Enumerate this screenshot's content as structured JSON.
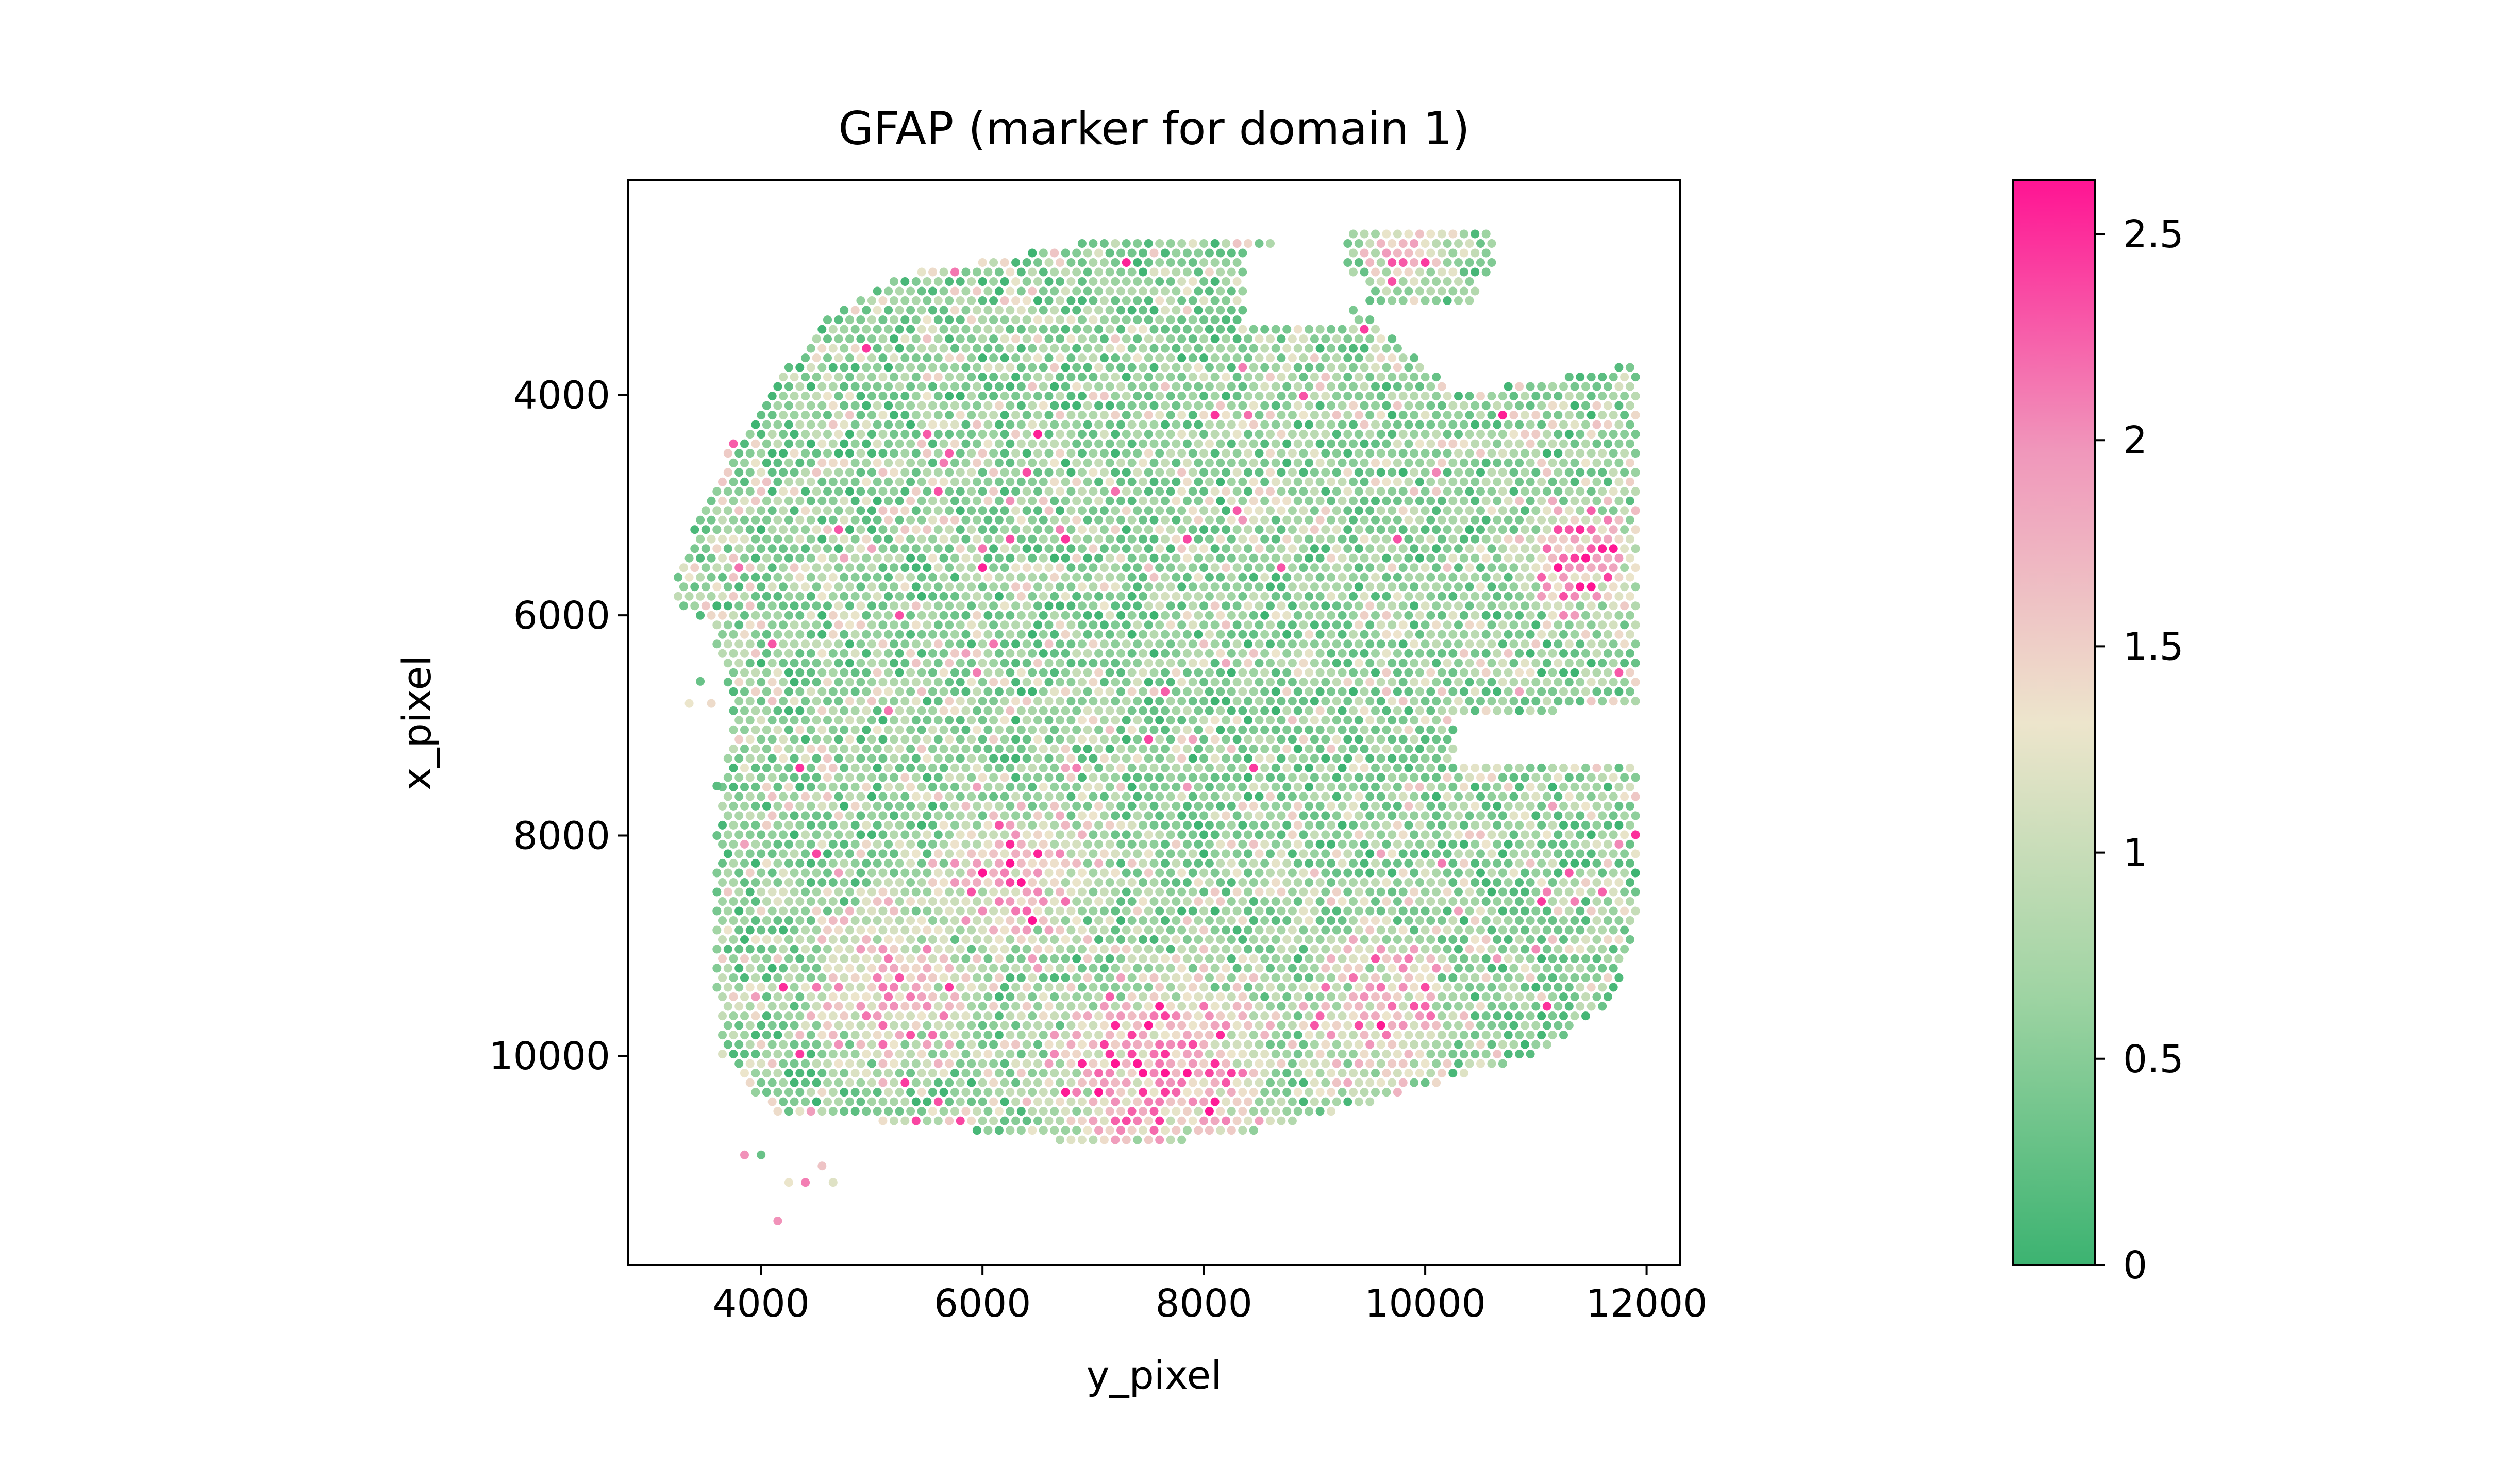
{
  "chart_data": {
    "type": "scatter",
    "title": "GFAP (marker for domain 1)",
    "xlabel": "y_pixel",
    "ylabel": "x_pixel",
    "xlim": [
      2800,
      12300
    ],
    "ylim": [
      11900,
      2050
    ],
    "y_inverted": true,
    "grid": false,
    "x_ticks": [
      4000,
      6000,
      8000,
      10000,
      12000
    ],
    "x_tick_labels": [
      "4000",
      "6000",
      "8000",
      "10000",
      "12000"
    ],
    "y_ticks": [
      4000,
      6000,
      8000,
      10000
    ],
    "y_tick_labels": [
      "4000",
      "6000",
      "8000",
      "10000"
    ],
    "spot_spacing": 100,
    "colorbar": {
      "min": 0,
      "max": 2.63,
      "ticks": [
        0,
        0.5,
        1,
        1.5,
        2,
        2.5
      ],
      "tick_labels": [
        "0",
        "0.5",
        "1",
        "1.5",
        "2",
        "2.5"
      ],
      "colors": [
        "#3cb371",
        "#9fd4a3",
        "#ede5cc",
        "#f097bb",
        "#ff1493"
      ]
    },
    "tissue_outline": [
      [
        3200,
        5700
      ],
      [
        3400,
        5200
      ],
      [
        3700,
        4500
      ],
      [
        4200,
        3800
      ],
      [
        4600,
        3300
      ],
      [
        5300,
        2900
      ],
      [
        6200,
        2750
      ],
      [
        7200,
        2550
      ],
      [
        8300,
        2550
      ],
      [
        9000,
        2700
      ],
      [
        9500,
        3300
      ],
      [
        10300,
        4000
      ],
      [
        11400,
        3800
      ],
      [
        11950,
        3700
      ],
      [
        11950,
        6800
      ],
      [
        10300,
        6950
      ],
      [
        10300,
        7300
      ],
      [
        11950,
        7300
      ],
      [
        11950,
        8600
      ],
      [
        11700,
        9500
      ],
      [
        11000,
        10000
      ],
      [
        9600,
        10400
      ],
      [
        8200,
        10750
      ],
      [
        7000,
        10800
      ],
      [
        5200,
        10600
      ],
      [
        4100,
        10500
      ],
      [
        3650,
        10000
      ],
      [
        3550,
        9000
      ],
      [
        3650,
        7500
      ],
      [
        3750,
        6900
      ],
      [
        3550,
        6100
      ],
      [
        3250,
        5900
      ]
    ],
    "excluded_regions": [
      [
        [
          8400,
          2700
        ],
        [
          9350,
          2700
        ],
        [
          9350,
          3400
        ],
        [
          8400,
          3400
        ]
      ]
    ],
    "detached_region": [
      [
        9300,
        2480
      ],
      [
        10650,
        2480
      ],
      [
        10650,
        3200
      ],
      [
        9300,
        3200
      ]
    ],
    "hotspots": [
      {
        "x": 11400,
        "y": 5500,
        "radius": 700,
        "level": 2.2
      },
      {
        "x": 6300,
        "y": 8400,
        "radius": 900,
        "level": 1.7
      },
      {
        "x": 7600,
        "y": 10250,
        "radius": 1300,
        "level": 1.9
      },
      {
        "x": 5200,
        "y": 9400,
        "radius": 1000,
        "level": 1.5
      },
      {
        "x": 9600,
        "y": 9600,
        "radius": 900,
        "level": 1.4
      },
      {
        "x": 9800,
        "y": 2700,
        "radius": 500,
        "level": 1.5
      }
    ],
    "stray_spots": [
      {
        "x": 3350,
        "y": 6800,
        "v": 1.3
      },
      {
        "x": 3450,
        "y": 6600,
        "v": 0.3
      },
      {
        "x": 3550,
        "y": 6800,
        "v": 1.4
      },
      {
        "x": 3600,
        "y": 7550,
        "v": 0.2
      },
      {
        "x": 3600,
        "y": 8000,
        "v": 0.3
      },
      {
        "x": 3850,
        "y": 10900,
        "v": 2.0
      },
      {
        "x": 4000,
        "y": 10900,
        "v": 0.3
      },
      {
        "x": 4250,
        "y": 11150,
        "v": 1.3
      },
      {
        "x": 4400,
        "y": 11150,
        "v": 2.1
      },
      {
        "x": 4550,
        "y": 11000,
        "v": 1.6
      },
      {
        "x": 4650,
        "y": 11150,
        "v": 1.2
      },
      {
        "x": 4150,
        "y": 11500,
        "v": 2.0
      }
    ]
  }
}
